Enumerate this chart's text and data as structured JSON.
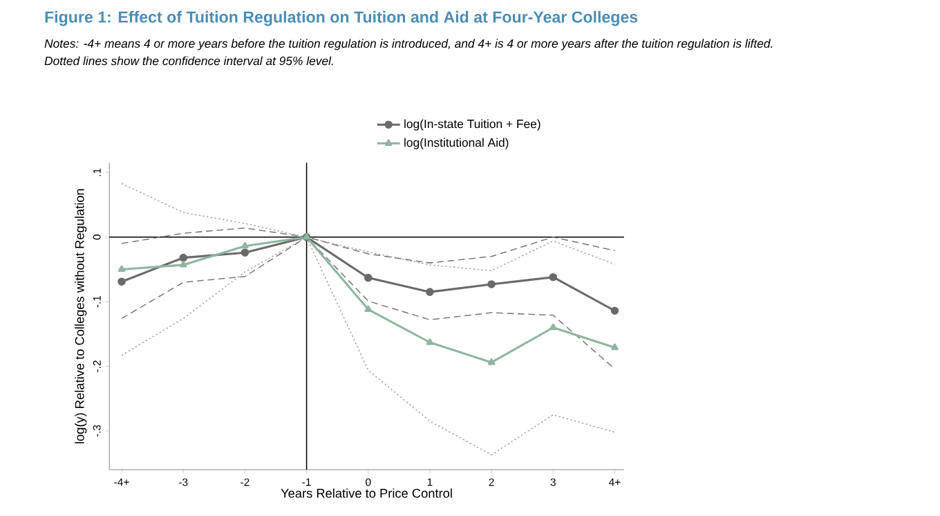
{
  "chart_data": {
    "type": "line",
    "title": "Figure 1: Effect of Tuition Regulation on Tuition and Aid at Four-Year Colleges",
    "annotations": [
      "*Notes: -4+ means 4 or more years before the tuition regulation is introduced, and 4+ is 4 or more years after the tuition regulation is lifted.*",
      "*Dotted lines show the confidence interval at 95% level.*"
    ],
    "xlabel": "Years Relative to Price Control",
    "ylabel": "log(y) Relative to Colleges without Regulation",
    "categories": [
      "-4+",
      "-3",
      "-2",
      "-1",
      "0",
      "1",
      "2",
      "3",
      "4+"
    ],
    "ylim": [
      -0.36,
      0.115
    ],
    "yticks": [
      {
        "value": 0.1,
        "label": ".1"
      },
      0,
      {
        "value": -0.1,
        "label": "-.1"
      },
      {
        "value": -0.2,
        "label": "-.2"
      },
      {
        "value": -0.3,
        "label": "-.3"
      }
    ],
    "series": [
      {
        "color": "#a0a0a0",
        "line_style": "dotted",
        "marker": "none",
        "values": [
          0.083,
          0.038,
          0.021,
          0,
          -0.023,
          -0.043,
          -0.052,
          -0.006,
          -0.042
        ]
      },
      {
        "color": "#a0a0a0",
        "line_style": "dotted",
        "marker": "none",
        "values": [
          -0.183,
          -0.126,
          -0.054,
          0,
          -0.206,
          -0.285,
          -0.337,
          -0.275,
          -0.302
        ]
      },
      {
        "color": "#7a7a7a",
        "line_style": "dashed",
        "marker": "none",
        "values": [
          -0.01,
          0.006,
          0.014,
          0,
          -0.026,
          -0.04,
          -0.03,
          0,
          -0.021
        ]
      },
      {
        "color": "#7a7a7a",
        "line_style": "dashed",
        "marker": "none",
        "values": [
          -0.126,
          -0.07,
          -0.061,
          0,
          -0.099,
          -0.128,
          -0.117,
          -0.121,
          -0.204
        ]
      },
      {
        "name": "log(In-state Tuition + Fee)",
        "color": "#6a6a6a",
        "line_style": "solid",
        "marker": "circle",
        "values": [
          -0.069,
          -0.032,
          -0.024,
          0,
          -0.063,
          -0.085,
          -0.073,
          -0.062,
          -0.114
        ]
      },
      {
        "name": "log(Institutional Aid)",
        "color": "#8fb5a0",
        "line_style": "solid",
        "marker": "triangle",
        "values": [
          -0.05,
          -0.043,
          -0.014,
          0,
          -0.112,
          -0.163,
          -0.194,
          -0.14,
          -0.171
        ]
      }
    ],
    "ref_lines": [
      {
        "axis": "y",
        "value": 0,
        "color": "#000000"
      },
      {
        "axis": "x",
        "value": "-1",
        "color": "#000000"
      }
    ],
    "legend": "top",
    "grid": false
  }
}
